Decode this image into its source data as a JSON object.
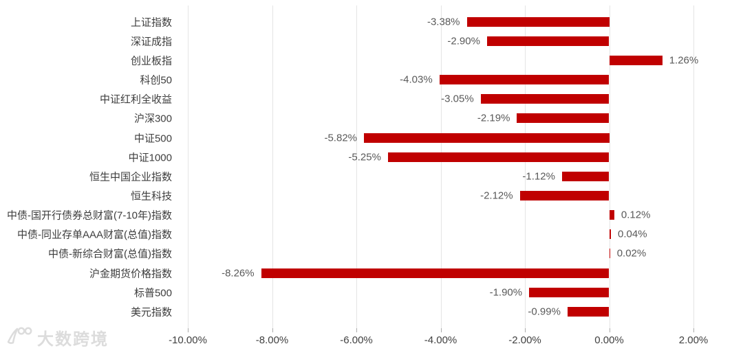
{
  "chart_data": {
    "type": "bar",
    "orientation": "horizontal",
    "title": "",
    "xlabel": "",
    "ylabel": "",
    "grid": "vertical-on",
    "legend": "none",
    "bar_color": "#c00000",
    "xlim": [
      -10.6,
      3.2
    ],
    "categories": [
      "上证指数",
      "深证成指",
      "创业板指",
      "科创50",
      "中证红利全收益",
      "沪深300",
      "中证500",
      "中证1000",
      "恒生中国企业指数",
      "恒生科技",
      "中债-国开行债券总财富(7-10年)指数",
      "中债-同业存单AAA财富(总值)指数",
      "中债-新综合财富(总值)指数",
      "沪金期货价格指数",
      "标普500",
      "美元指数"
    ],
    "values": [
      -3.38,
      -2.9,
      1.26,
      -4.03,
      -3.05,
      -2.19,
      -5.82,
      -5.25,
      -1.12,
      -2.12,
      0.12,
      0.04,
      0.02,
      -8.26,
      -1.9,
      -0.99
    ],
    "value_labels": [
      "-3.38%",
      "-2.90%",
      "1.26%",
      "-4.03%",
      "-3.05%",
      "-2.19%",
      "-5.82%",
      "-5.25%",
      "-1.12%",
      "-2.12%",
      "0.12%",
      "0.04%",
      "0.02%",
      "-8.26%",
      "-1.90%",
      "-0.99%"
    ],
    "x_ticks": [
      {
        "label": "-10.00%",
        "value": -10
      },
      {
        "label": "-8.00%",
        "value": -8
      },
      {
        "label": "-6.00%",
        "value": -6
      },
      {
        "label": "-4.00%",
        "value": -4
      },
      {
        "label": "-2.00%",
        "value": -2
      },
      {
        "label": "0.00%",
        "value": 0
      },
      {
        "label": "2.00%",
        "value": 2
      }
    ]
  },
  "watermark": {
    "text": "大数跨境",
    "logo": "100-swoosh-logo",
    "color": "#dcdcdc"
  }
}
